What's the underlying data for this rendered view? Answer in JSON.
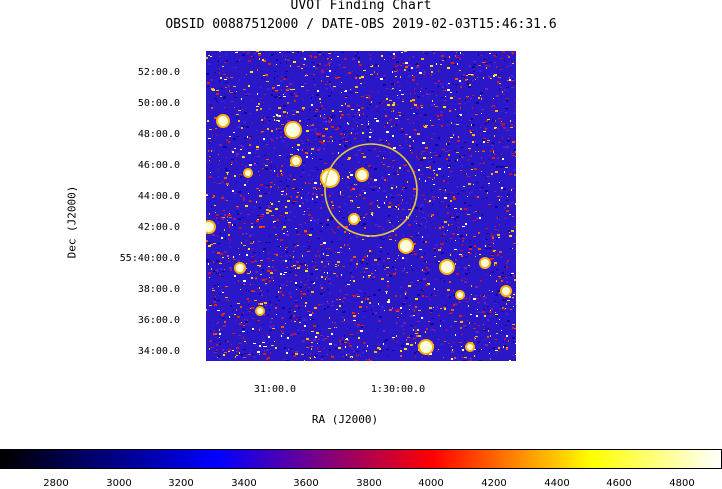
{
  "header": {
    "title": "UVOT Finding Chart",
    "subtitle": "OBSID 00887512000 / DATE-OBS 2019-02-03T15:46:31.6"
  },
  "axes": {
    "y_label": "Dec (J2000)",
    "x_label": "RA (J2000)",
    "y_ticks": [
      "52:00.0",
      "50:00.0",
      "48:00.0",
      "46:00.0",
      "44:00.0",
      "42:00.0",
      "55:40:00.0",
      "38:00.0",
      "36:00.0",
      "34:00.0"
    ],
    "x_ticks": [
      "31:00.0",
      "1:30:00.0"
    ]
  },
  "colorbar": {
    "ticks": [
      "2800",
      "3000",
      "3200",
      "3400",
      "3600",
      "3800",
      "4000",
      "4200",
      "4400",
      "4600",
      "4800"
    ],
    "stops": [
      "#000000",
      "#0000ff",
      "#ff0000",
      "#ffff00",
      "#ffffff"
    ]
  },
  "image": {
    "background_color": "#2a18c8",
    "circle_color": "#e6c83c"
  }
}
